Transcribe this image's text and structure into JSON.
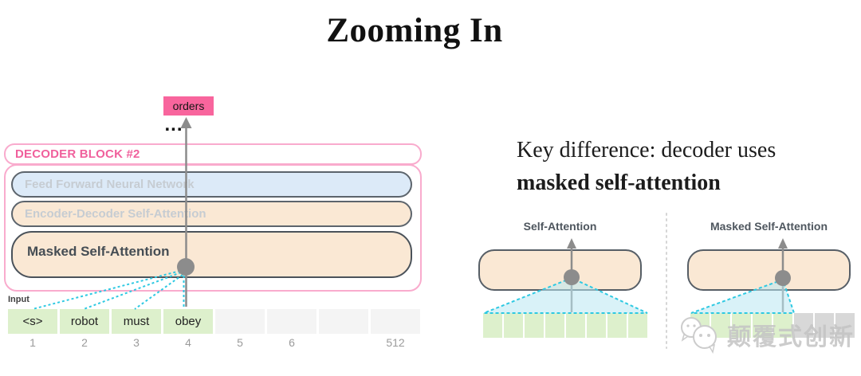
{
  "title": "Zooming In",
  "decoder_panel": {
    "output_token": "orders",
    "ellipsis": "...",
    "block_label": "DECODER BLOCK #2",
    "layers": [
      {
        "label": "Feed Forward Neural Network",
        "state": "inactive"
      },
      {
        "label": "Encoder-Decoder Self-Attention",
        "state": "inactive"
      },
      {
        "label": "Masked Self-Attention",
        "state": "active"
      }
    ],
    "input_label": "Input",
    "input_tokens": [
      "<s>",
      "robot",
      "must",
      "obey"
    ],
    "empty_cell_count": 4,
    "position_labels": [
      "1",
      "2",
      "3",
      "4",
      "5",
      "6",
      "",
      "512"
    ]
  },
  "key_point": {
    "line1": "Key difference: decoder uses",
    "line2": "masked self-attention"
  },
  "comparison": {
    "self_attention": {
      "title": "Self-Attention",
      "attended_cells": 8,
      "masked_cells": 0
    },
    "masked_self_attention": {
      "title": "Masked Self-Attention",
      "attended_cells": 5,
      "masked_cells": 3
    }
  },
  "watermark": {
    "icon": "wechat-icon",
    "text": "颠覆式创新"
  },
  "colors": {
    "pink": "#F8659D",
    "pink_border": "#F9ABCD",
    "pink_text": "#F0609C",
    "peach": "#FAE8D4",
    "light_blue": "#DCEAF8",
    "green_cell": "#DDF0CC",
    "empty_cell": "#F4F4F4",
    "masked_cell": "#D8D8D8",
    "cyan": "#2EC9E2",
    "gray": "#8C8C8C"
  }
}
